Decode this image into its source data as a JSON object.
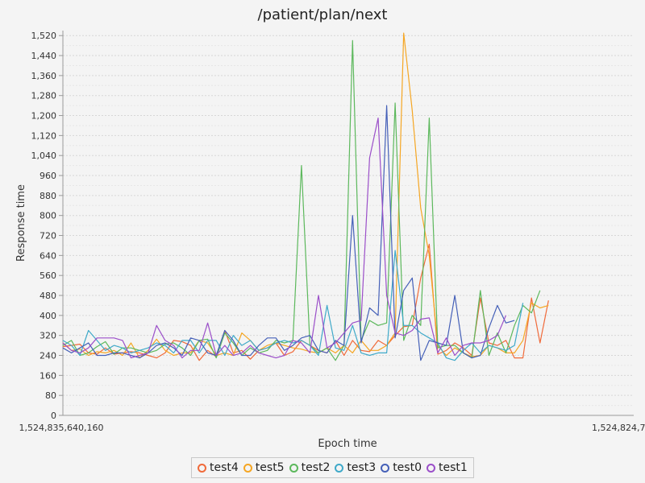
{
  "chart_data": {
    "type": "line",
    "title": "/patient/plan/next",
    "xlabel": "Epoch time",
    "ylabel": "Response time",
    "x_tick_labels": [
      "1,524,835,640,160",
      "1,524,824,7"
    ],
    "ylim": [
      0,
      1540
    ],
    "y_ticks": [
      0,
      80,
      160,
      240,
      320,
      400,
      480,
      560,
      640,
      720,
      800,
      880,
      960,
      1040,
      1120,
      1200,
      1280,
      1360,
      1440,
      1520
    ],
    "y_tick_labels": [
      "0",
      "80",
      "160",
      "240",
      "320",
      "400",
      "480",
      "560",
      "640",
      "720",
      "800",
      "880",
      "960",
      "1,040",
      "1,120",
      "1,200",
      "1,280",
      "1,360",
      "1,440",
      "1,520"
    ],
    "grid": true,
    "legend_position": "bottom",
    "x_index": [
      0,
      1,
      2,
      3,
      4,
      5,
      6,
      7,
      8,
      9,
      10,
      11,
      12,
      13,
      14,
      15,
      16,
      17,
      18,
      19,
      20,
      21,
      22,
      23,
      24,
      25,
      26,
      27,
      28,
      29,
      30,
      31,
      32,
      33,
      34,
      35,
      36,
      37,
      38,
      39,
      40,
      41,
      42,
      43,
      44,
      45,
      46,
      47,
      48,
      49,
      50,
      51,
      52,
      53,
      54,
      55,
      56,
      57,
      58,
      59,
      60,
      61,
      62,
      63,
      64,
      65,
      66,
      67
    ],
    "series": [
      {
        "name": "test4",
        "color": "#f06a3a",
        "values": [
          275,
          280,
          285,
          250,
          245,
          270,
          245,
          250,
          255,
          250,
          240,
          230,
          250,
          300,
          295,
          280,
          220,
          260,
          235,
          340,
          250,
          260,
          225,
          260,
          270,
          290,
          240,
          255,
          300,
          280,
          260,
          250,
          300,
          240,
          300,
          260,
          255,
          300,
          280,
          320,
          355,
          360,
          550,
          685,
          245,
          260,
          290,
          270,
          240,
          470,
          290,
          280,
          300,
          230,
          230,
          470,
          290,
          460
        ]
      },
      {
        "name": "test5",
        "color": "#f5a623",
        "values": [
          290,
          260,
          265,
          240,
          255,
          250,
          260,
          240,
          290,
          230,
          260,
          305,
          260,
          240,
          250,
          250,
          300,
          290,
          240,
          250,
          240,
          330,
          300,
          260,
          280,
          290,
          280,
          270,
          265,
          255,
          250,
          270,
          250,
          280,
          250,
          300,
          260,
          260,
          280,
          330,
          1530,
          1220,
          830,
          640,
          280,
          240,
          270,
          250,
          235,
          240,
          280,
          270,
          250,
          250,
          300,
          450,
          430,
          440
        ]
      },
      {
        "name": "test2",
        "color": "#5cb85c",
        "values": [
          280,
          300,
          240,
          250,
          275,
          295,
          245,
          270,
          270,
          260,
          250,
          260,
          285,
          290,
          270,
          240,
          300,
          305,
          230,
          330,
          290,
          240,
          270,
          250,
          260,
          300,
          290,
          300,
          1000,
          280,
          250,
          270,
          220,
          280,
          1500,
          300,
          380,
          360,
          370,
          1250,
          300,
          400,
          360,
          1190,
          270,
          280,
          280,
          250,
          230,
          500,
          240,
          330,
          250,
          360,
          440,
          410,
          500
        ]
      },
      {
        "name": "test3",
        "color": "#3fa9c9",
        "values": [
          300,
          280,
          240,
          340,
          300,
          260,
          280,
          270,
          250,
          260,
          270,
          290,
          280,
          250,
          300,
          300,
          250,
          300,
          300,
          240,
          320,
          280,
          300,
          260,
          270,
          290,
          300,
          290,
          300,
          280,
          240,
          440,
          270,
          260,
          360,
          250,
          240,
          250,
          250,
          660,
          360,
          360,
          330,
          310,
          290,
          230,
          220,
          260,
          290,
          250,
          280,
          270,
          260,
          280,
          450
        ]
      },
      {
        "name": "test0",
        "color": "#4560b8",
        "values": [
          270,
          250,
          270,
          290,
          240,
          240,
          250,
          250,
          240,
          230,
          250,
          280,
          290,
          270,
          240,
          310,
          300,
          250,
          240,
          340,
          300,
          240,
          240,
          280,
          310,
          310,
          260,
          280,
          310,
          320,
          260,
          250,
          300,
          280,
          800,
          290,
          430,
          400,
          1240,
          310,
          500,
          550,
          220,
          300,
          290,
          280,
          480,
          250,
          230,
          240,
          350,
          440,
          370,
          380
        ]
      },
      {
        "name": "test1",
        "color": "#9b4fc9",
        "values": [
          290,
          260,
          250,
          270,
          310,
          310,
          310,
          300,
          230,
          240,
          250,
          360,
          300,
          280,
          230,
          260,
          260,
          370,
          240,
          280,
          240,
          250,
          280,
          250,
          240,
          230,
          240,
          300,
          290,
          250,
          480,
          270,
          290,
          330,
          370,
          380,
          1030,
          1190,
          480,
          330,
          320,
          340,
          385,
          390,
          250,
          310,
          240,
          280,
          290,
          290,
          300,
          320,
          400
        ]
      }
    ]
  }
}
